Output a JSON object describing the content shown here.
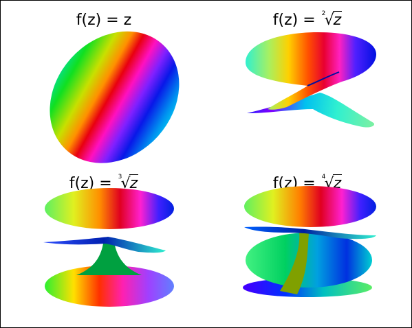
{
  "figure": {
    "panels": [
      {
        "lhs": "f(z) = ",
        "rhs": "z",
        "root_index": ""
      },
      {
        "lhs": "f(z) = ",
        "rhs": "z",
        "root_index": "2"
      },
      {
        "lhs": "f(z) = ",
        "rhs": "z",
        "root_index": "3"
      },
      {
        "lhs": "f(z) = ",
        "rhs": "z",
        "root_index": "4"
      }
    ],
    "colormap": "hsv",
    "radical_glyph": "√"
  }
}
